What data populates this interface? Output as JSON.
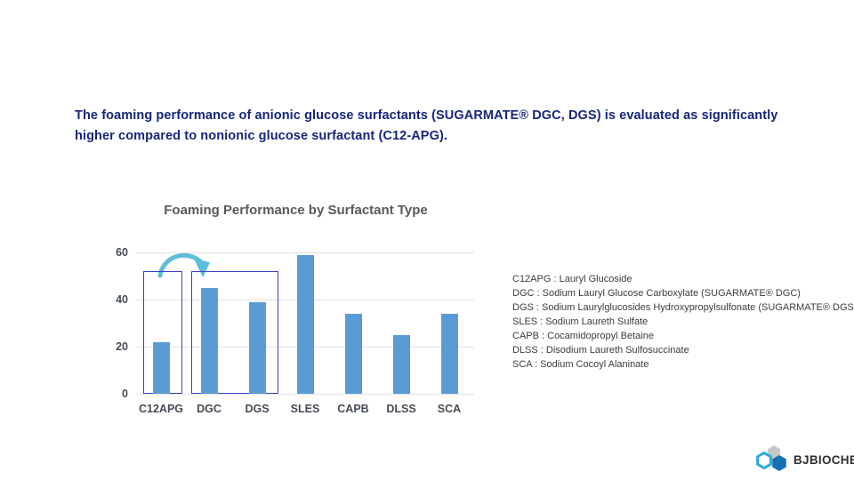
{
  "header": {
    "lines": [
      "The foaming performance of anionic glucose surfactants (SUGARMATE® DGC, DGS) is evaluated as significantly",
      "higher compared to nonionic glucose surfactant (C12-APG)."
    ]
  },
  "chart_data": {
    "type": "bar",
    "title": "Foaming Performance by Surfactant Type",
    "categories": [
      "C12APG",
      "DGC",
      "DGS",
      "SLES",
      "CAPB",
      "DLSS",
      "SCA"
    ],
    "values": [
      22,
      45,
      39,
      59,
      34,
      25,
      34
    ],
    "xlabel": "",
    "ylabel": "",
    "ylim": [
      0,
      60
    ],
    "yticks": [
      0,
      20,
      40,
      60
    ],
    "grid": true,
    "legend_position": "none",
    "annotations": {
      "highlight_boxes": [
        {
          "categories": [
            "C12APG"
          ],
          "top_value": 52
        },
        {
          "categories": [
            "DGC",
            "DGS"
          ],
          "top_value": 52
        }
      ],
      "arrow": {
        "type": "arc",
        "from": "C12APG",
        "to": "DGC"
      }
    }
  },
  "legend": {
    "items": [
      "C12APG : Lauryl Glucoside",
      "DGC : Sodium Lauryl Glucose Carboxylate (SUGARMATE® DGC)",
      "DGS : Sodium Laurylglucosides Hydroxypropylsulfonate (SUGARMATE® DGS)",
      "SLES : Sodium Laureth Sulfate",
      "CAPB : Cocamidopropyl Betaine",
      "DLSS : Disodium Laureth Sulfosuccinate",
      "SCA : Sodium Cocoyl Alaninate"
    ]
  },
  "logo": {
    "text": "BJBIOCHEM"
  },
  "colors": {
    "header_text": "#15267b",
    "chart_title": "#595959",
    "axis_text": "#454c56",
    "bar": "#5b9bd5",
    "gridline": "#e2e2e2",
    "highlight_border": "#3d3dc9",
    "arrow": "#5cbcdc",
    "legend_text": "#3c3c3c",
    "logo_text": "#2f2f2f",
    "logo_cyan": "#29aadf",
    "logo_gray": "#c8c8c8",
    "logo_blue": "#1670b4"
  }
}
